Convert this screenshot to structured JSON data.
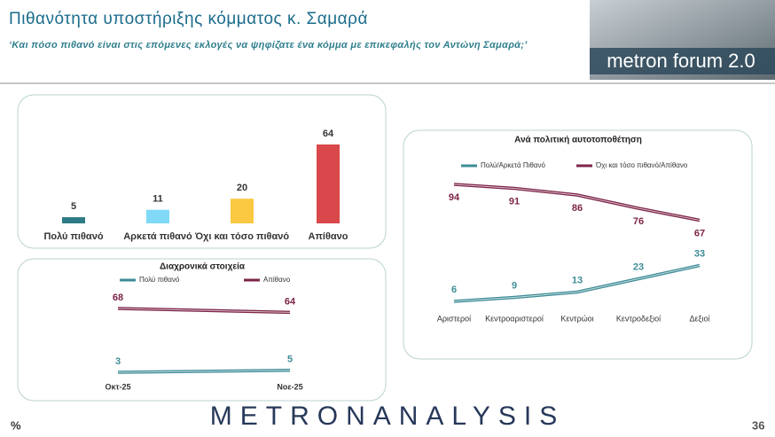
{
  "header": {
    "title": "Πιθανότητα υποστήριξης κόμματος κ. Σαμαρά",
    "subtitle": "‘Και πόσο πιθανό είναι στις επόμενες εκλογές να ψηφίζατε ένα κόμμα με επικεφαλής τον Αντώνη Σαμαρά;’",
    "logo": "metron forum 2.0"
  },
  "footer": {
    "brand": "METRONANALYSIS",
    "unit": "%",
    "page": "36"
  },
  "chart_data": [
    {
      "type": "bar",
      "categories": [
        "Πολύ πιθανό",
        "Αρκετά πιθανό",
        "Όχι και τόσο πιθανό",
        "Απίθανο"
      ],
      "values": [
        5,
        11,
        20,
        64
      ],
      "colors": [
        "#2e7b86",
        "#7fd9f7",
        "#fbc841",
        "#d9484a"
      ]
    },
    {
      "type": "line",
      "title": "Διαχρονικά στοιχεία",
      "categories": [
        "Οκτ-25",
        "Νοε-25"
      ],
      "series": [
        {
          "name": "Πολύ πιθανό",
          "color": "#3d8c96",
          "values": [
            3,
            5
          ]
        },
        {
          "name": "Απίθανο",
          "color": "#7d2448",
          "values": [
            68,
            64
          ]
        }
      ]
    },
    {
      "type": "line",
      "title": "Ανά πολιτική αυτοτοποθέτηση",
      "categories": [
        "Αριστεροί",
        "Κεντροαριστεροί",
        "Κεντρώοι",
        "Κεντροδεξιοί",
        "Δεξιοί"
      ],
      "series": [
        {
          "name": "Πολύ/Αρκετά Πιθανό",
          "color": "#3d8c96",
          "values": [
            6,
            9,
            13,
            23,
            33
          ]
        },
        {
          "name": "Όχι και τόσο πιθανό/Απίθανο",
          "color": "#7d2448",
          "values": [
            94,
            91,
            86,
            76,
            67
          ]
        }
      ]
    }
  ]
}
